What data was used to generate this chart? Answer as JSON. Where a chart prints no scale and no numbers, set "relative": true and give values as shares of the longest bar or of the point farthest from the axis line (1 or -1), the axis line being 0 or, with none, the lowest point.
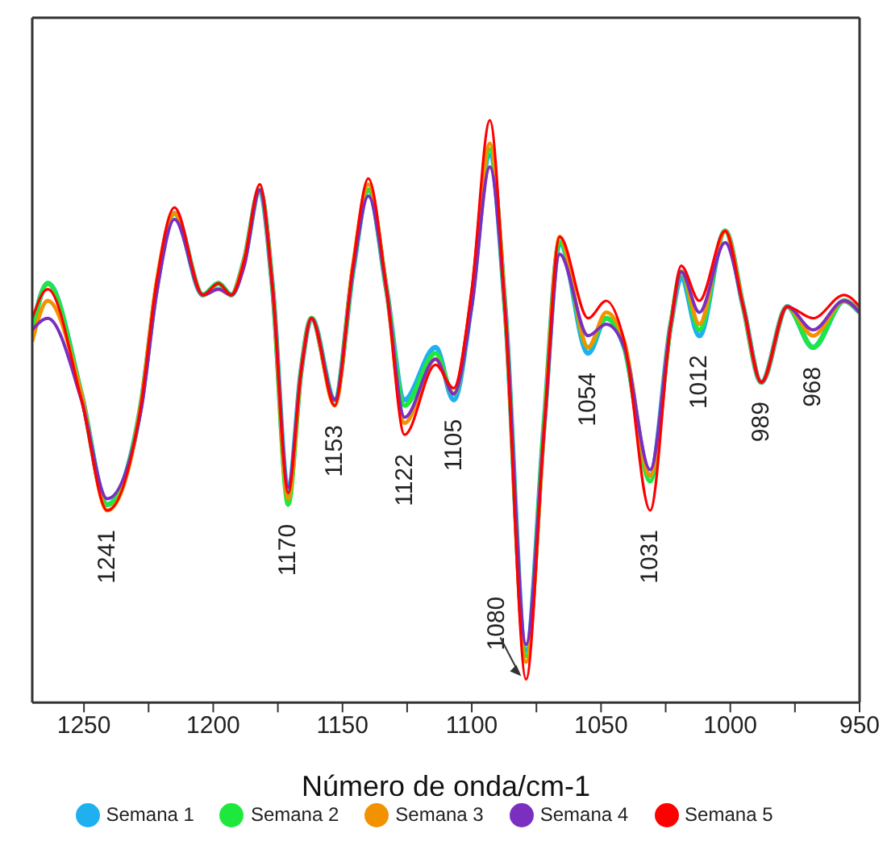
{
  "chart_data": {
    "type": "line",
    "relative": true,
    "xlabel": "Número de onda/cm-1",
    "xlim": [
      1270,
      950
    ],
    "xticks": [
      1250,
      {
        "value": 1225,
        "label": null
      },
      1200,
      {
        "value": 1175,
        "label": null
      },
      1150,
      {
        "value": 1125,
        "label": null
      },
      1100,
      {
        "value": 1075,
        "label": null
      },
      1050,
      {
        "value": 1025,
        "label": null
      },
      1000,
      {
        "value": 975,
        "label": null
      },
      950
    ],
    "x": [
      1270,
      1264,
      1251,
      1241,
      1228,
      1222,
      1215,
      1204,
      1198,
      1193,
      1188,
      1182,
      1177,
      1171,
      1166,
      1162,
      1153,
      1146,
      1140,
      1133,
      1126,
      1114,
      1107,
      1100,
      1093,
      1087,
      1079,
      1072,
      1066,
      1055,
      1048,
      1041,
      1031,
      1023,
      1019,
      1012,
      1002,
      995,
      988,
      978,
      968,
      956,
      950
    ],
    "series": [
      {
        "name": "Semana 1",
        "color": "#1fb0f0",
        "values": [
          0.64,
          0.72,
          0.53,
          0.34,
          0.51,
          0.71,
          0.84,
          0.7,
          0.72,
          0.7,
          0.76,
          0.88,
          0.71,
          0.36,
          0.57,
          0.66,
          0.52,
          0.74,
          0.88,
          0.71,
          0.52,
          0.61,
          0.52,
          0.69,
          0.94,
          0.67,
          0.09,
          0.48,
          0.79,
          0.6,
          0.66,
          0.61,
          0.39,
          0.65,
          0.73,
          0.63,
          0.81,
          0.68,
          0.55,
          0.68,
          0.61,
          0.69,
          0.67
        ]
      },
      {
        "name": "Semana 2",
        "color": "#1ee83c",
        "values": [
          0.64,
          0.72,
          0.53,
          0.34,
          0.51,
          0.71,
          0.84,
          0.7,
          0.72,
          0.7,
          0.76,
          0.88,
          0.71,
          0.34,
          0.57,
          0.66,
          0.52,
          0.74,
          0.88,
          0.71,
          0.51,
          0.6,
          0.53,
          0.69,
          0.95,
          0.67,
          0.08,
          0.48,
          0.79,
          0.61,
          0.66,
          0.61,
          0.38,
          0.65,
          0.74,
          0.64,
          0.81,
          0.68,
          0.55,
          0.68,
          0.61,
          0.69,
          0.67
        ]
      },
      {
        "name": "Semana 3",
        "color": "#f39200",
        "values": [
          0.62,
          0.69,
          0.53,
          0.33,
          0.51,
          0.72,
          0.84,
          0.7,
          0.71,
          0.7,
          0.76,
          0.88,
          0.71,
          0.35,
          0.57,
          0.66,
          0.51,
          0.75,
          0.89,
          0.71,
          0.48,
          0.59,
          0.53,
          0.7,
          0.96,
          0.67,
          0.07,
          0.47,
          0.8,
          0.61,
          0.67,
          0.62,
          0.39,
          0.65,
          0.74,
          0.65,
          0.81,
          0.68,
          0.55,
          0.68,
          0.63,
          0.69,
          0.67
        ]
      },
      {
        "name": "Semana 4",
        "color": "#7a2fc0",
        "values": [
          0.64,
          0.66,
          0.52,
          0.35,
          0.5,
          0.7,
          0.83,
          0.7,
          0.71,
          0.7,
          0.75,
          0.88,
          0.71,
          0.37,
          0.57,
          0.66,
          0.52,
          0.74,
          0.87,
          0.71,
          0.49,
          0.59,
          0.53,
          0.68,
          0.92,
          0.67,
          0.1,
          0.47,
          0.77,
          0.63,
          0.65,
          0.61,
          0.4,
          0.65,
          0.74,
          0.67,
          0.79,
          0.68,
          0.55,
          0.68,
          0.64,
          0.69,
          0.67
        ]
      },
      {
        "name": "Semana 5",
        "color": "#ff0000",
        "values": [
          0.66,
          0.71,
          0.52,
          0.33,
          0.51,
          0.72,
          0.85,
          0.7,
          0.72,
          0.7,
          0.76,
          0.89,
          0.71,
          0.36,
          0.57,
          0.66,
          0.51,
          0.75,
          0.9,
          0.71,
          0.46,
          0.58,
          0.54,
          0.71,
          1.0,
          0.66,
          0.04,
          0.47,
          0.8,
          0.66,
          0.69,
          0.62,
          0.33,
          0.65,
          0.75,
          0.69,
          0.81,
          0.68,
          0.55,
          0.68,
          0.66,
          0.7,
          0.68
        ]
      }
    ],
    "annotations": [
      {
        "text": "1241",
        "x": 1241,
        "y": 0.33
      },
      {
        "text": "1170",
        "x": 1171,
        "y": 0.34
      },
      {
        "text": "1153",
        "x": 1153,
        "y": 0.51
      },
      {
        "text": "1122",
        "x": 1126,
        "y": 0.46
      },
      {
        "text": "1105",
        "x": 1107,
        "y": 0.52
      },
      {
        "text": "1080",
        "x": 1079,
        "y": 0.04
      },
      {
        "text": "1054",
        "x": 1055,
        "y": 0.6
      },
      {
        "text": "1031",
        "x": 1031,
        "y": 0.33
      },
      {
        "text": "1012",
        "x": 1012,
        "y": 0.63
      },
      {
        "text": "989",
        "x": 988,
        "y": 0.55
      },
      {
        "text": "968",
        "x": 968,
        "y": 0.61
      }
    ],
    "legend": "bottom",
    "grid": false,
    "marker": "none",
    "line_style": "solid"
  }
}
